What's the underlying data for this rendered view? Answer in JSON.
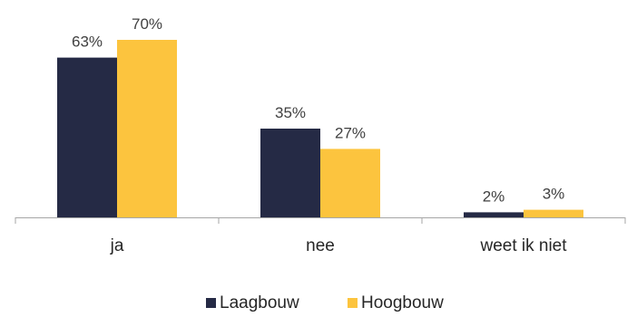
{
  "chart_data": {
    "type": "bar",
    "categories": [
      "ja",
      "nee",
      "weet ik niet"
    ],
    "series": [
      {
        "name": "Laagbouw",
        "values": [
          63,
          35,
          2
        ],
        "labels": [
          "63%",
          "35%",
          "2%"
        ],
        "color": "#252a45"
      },
      {
        "name": "Hoogbouw",
        "values": [
          70,
          27,
          3
        ],
        "labels": [
          "70%",
          "27%",
          "3%"
        ],
        "color": "#fcc43e"
      }
    ],
    "ylim": [
      0,
      100
    ],
    "value_unit": "%",
    "legend_position": "bottom",
    "grid": false,
    "axis_color": "#a6a6a6"
  }
}
